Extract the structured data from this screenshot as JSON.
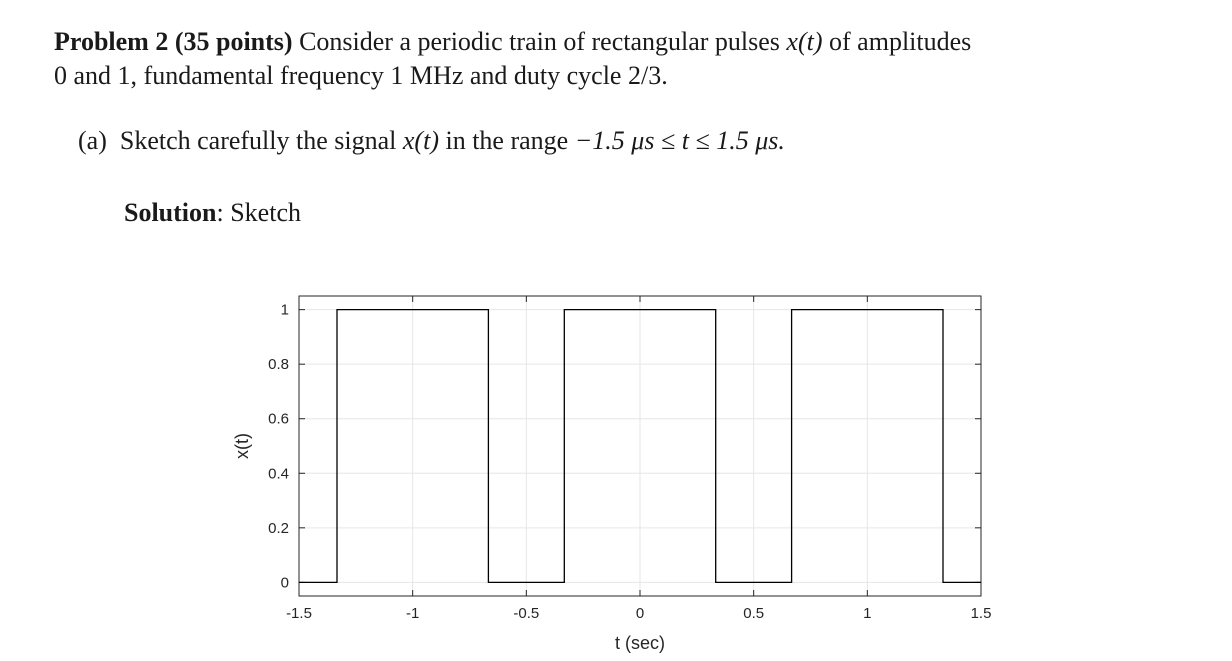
{
  "problem": {
    "heading": "Problem 2 (35 points)",
    "text_before_signal": "Consider a periodic train of rectangular pulses",
    "signal": "x(t)",
    "text_after_signal": "of amplitudes",
    "line2": "0 and 1, fundamental frequency 1 MHz and duty cycle 2/3."
  },
  "part_a": {
    "label": "(a)",
    "text_before_signal": "Sketch carefully the signal",
    "signal": "x(t)",
    "text_middle": "in the range",
    "range": "−1.5 μs ≤ t ≤ 1.5 μs."
  },
  "solution": {
    "label": "Solution",
    "text": ": Sketch"
  },
  "chart_data": {
    "type": "line",
    "xlabel": "t (sec)",
    "ylabel": "x(t)",
    "xlim": [
      -1.5,
      1.5
    ],
    "ylim": [
      -0.05,
      1.05
    ],
    "x_ticks": [
      -1.5,
      -1,
      -0.5,
      0,
      0.5,
      1,
      1.5
    ],
    "x_tick_labels": [
      "-1.5",
      "-1",
      "-0.5",
      "0",
      "0.5",
      "1",
      "1.5"
    ],
    "y_ticks": [
      0,
      0.2,
      0.4,
      0.6,
      0.8,
      1
    ],
    "y_tick_labels": [
      "0",
      "0.2",
      "0.4",
      "0.6",
      "0.8",
      "1"
    ],
    "grid": true,
    "series": [
      {
        "x": [
          -1.5,
          -1.333,
          -1.333,
          -0.667,
          -0.667,
          -0.333,
          -0.333,
          0.333,
          0.333,
          0.667,
          0.667,
          1.333,
          1.333,
          1.5
        ],
        "y": [
          0,
          0,
          1,
          1,
          0,
          0,
          1,
          1,
          0,
          0,
          1,
          1,
          0,
          0
        ]
      }
    ],
    "colors": {
      "line": "#000000",
      "grid": "#e6e6e6",
      "axes": "#262626"
    }
  }
}
